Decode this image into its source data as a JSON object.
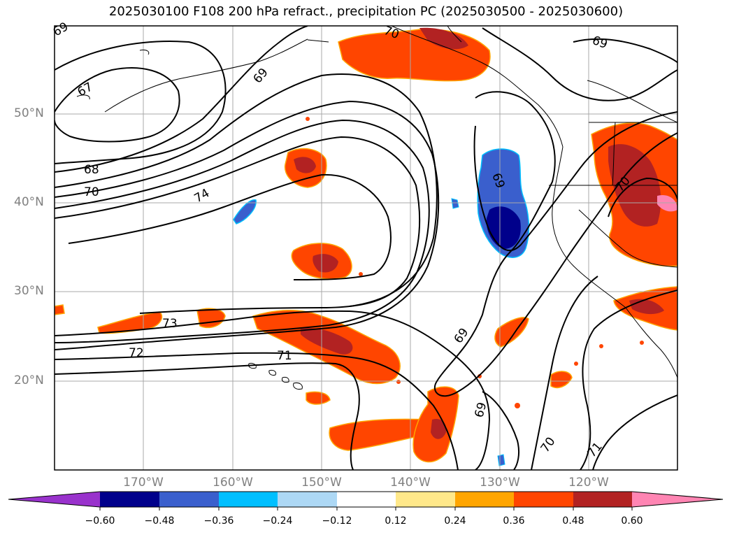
{
  "title": "2025030100 F108 200 hPa refract., precipitation PC (2025030500 - 2025030600)",
  "latitude_labels": [
    "50°N",
    "40°N",
    "30°N",
    "20°N"
  ],
  "longitude_labels": [
    "170°W",
    "160°W",
    "150°W",
    "140°W",
    "130°W",
    "120°W"
  ],
  "contour_labels": [
    "69",
    "70",
    "69",
    "67",
    "68",
    "70",
    "74",
    "69",
    "73",
    "72",
    "71",
    "69",
    "69",
    "70",
    "71",
    "69",
    "70"
  ],
  "colorbar": {
    "ticks": [
      "−0.60",
      "−0.48",
      "−0.36",
      "−0.24",
      "−0.12",
      "0.12",
      "0.24",
      "0.36",
      "0.48",
      "0.60"
    ],
    "colors": [
      "#9932cc",
      "#00008b",
      "#3a5fcd",
      "#00bfff",
      "#add8f5",
      "#ffffff",
      "#ffe88a",
      "#ffa500",
      "#ff4500",
      "#b22222",
      "#ff85b3"
    ]
  },
  "colors": {
    "frame": "#000000",
    "grid": "#a9a9a9",
    "contour": "#000000",
    "coast": "#000000"
  }
}
